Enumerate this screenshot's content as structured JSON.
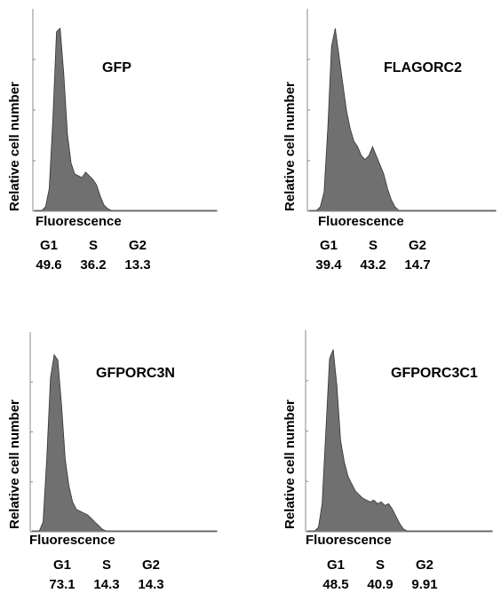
{
  "chart_data": [
    {
      "type": "area",
      "title": "GFP",
      "xlabel": "Fluorescence",
      "ylabel": "Relative cell number",
      "stats": [
        {
          "phase": "G1",
          "value": "49.6"
        },
        {
          "phase": "S",
          "value": "36.2"
        },
        {
          "phase": "G2",
          "value": "13.3"
        }
      ],
      "x": [
        0,
        2,
        4,
        6,
        8,
        10,
        12,
        14,
        16,
        18,
        20,
        22,
        24,
        26,
        28,
        30,
        32,
        34,
        36,
        38,
        40,
        42,
        44,
        46,
        48,
        50,
        100
      ],
      "y": [
        0,
        0,
        0,
        0.02,
        0.12,
        0.5,
        0.98,
        1.0,
        0.75,
        0.42,
        0.26,
        0.2,
        0.19,
        0.18,
        0.21,
        0.19,
        0.17,
        0.14,
        0.08,
        0.03,
        0.01,
        0,
        0,
        0,
        0,
        0,
        0
      ]
    },
    {
      "type": "area",
      "title": "FLAGORC2",
      "xlabel": "Fluorescence",
      "ylabel": "Relative cell number",
      "stats": [
        {
          "phase": "G1",
          "value": "39.4"
        },
        {
          "phase": "S",
          "value": "43.2"
        },
        {
          "phase": "G2",
          "value": "14.7"
        }
      ],
      "x": [
        0,
        2,
        4,
        6,
        8,
        10,
        12,
        14,
        16,
        18,
        20,
        22,
        24,
        26,
        28,
        30,
        32,
        34,
        36,
        38,
        40,
        42,
        44,
        46,
        48,
        50,
        52,
        54,
        56,
        100
      ],
      "y": [
        0,
        0,
        0,
        0.02,
        0.1,
        0.45,
        0.9,
        1.0,
        0.85,
        0.7,
        0.55,
        0.45,
        0.38,
        0.35,
        0.3,
        0.28,
        0.3,
        0.35,
        0.3,
        0.25,
        0.2,
        0.12,
        0.06,
        0.02,
        0,
        0,
        0,
        0,
        0,
        0
      ]
    },
    {
      "type": "area",
      "title": "GFPORC3N",
      "xlabel": "Fluorescence",
      "ylabel": "Relative cell number",
      "stats": [
        {
          "phase": "G1",
          "value": "73.1"
        },
        {
          "phase": "S",
          "value": "14.3"
        },
        {
          "phase": "G2",
          "value": "14.3"
        }
      ],
      "x": [
        0,
        2,
        4,
        6,
        8,
        10,
        12,
        14,
        16,
        18,
        20,
        22,
        24,
        26,
        28,
        30,
        32,
        34,
        36,
        38,
        40,
        42,
        44,
        46,
        100
      ],
      "y": [
        0,
        0,
        0,
        0.05,
        0.4,
        0.85,
        0.98,
        0.95,
        0.7,
        0.4,
        0.25,
        0.16,
        0.12,
        0.11,
        0.1,
        0.09,
        0.07,
        0.05,
        0.03,
        0.01,
        0,
        0,
        0,
        0,
        0
      ]
    },
    {
      "type": "area",
      "title": "GFPORC3C1",
      "xlabel": "Fluorescence",
      "ylabel": "Relative cell number",
      "stats": [
        {
          "phase": "G1",
          "value": "48.5"
        },
        {
          "phase": "S",
          "value": "40.9"
        },
        {
          "phase": "G2",
          "value": "9.91"
        }
      ],
      "x": [
        0,
        2,
        4,
        6,
        8,
        10,
        12,
        14,
        16,
        18,
        20,
        22,
        24,
        26,
        28,
        30,
        32,
        34,
        36,
        38,
        40,
        42,
        44,
        46,
        48,
        50,
        52,
        54,
        56,
        58,
        100
      ],
      "y": [
        0,
        0,
        0,
        0.02,
        0.15,
        0.55,
        0.95,
        1.0,
        0.8,
        0.5,
        0.38,
        0.3,
        0.26,
        0.22,
        0.2,
        0.18,
        0.17,
        0.16,
        0.17,
        0.15,
        0.16,
        0.14,
        0.15,
        0.12,
        0.08,
        0.04,
        0.01,
        0,
        0,
        0,
        0
      ]
    }
  ],
  "colors": {
    "fill": "#707070",
    "stroke": "#333333",
    "axis": "#8a8a8a"
  }
}
